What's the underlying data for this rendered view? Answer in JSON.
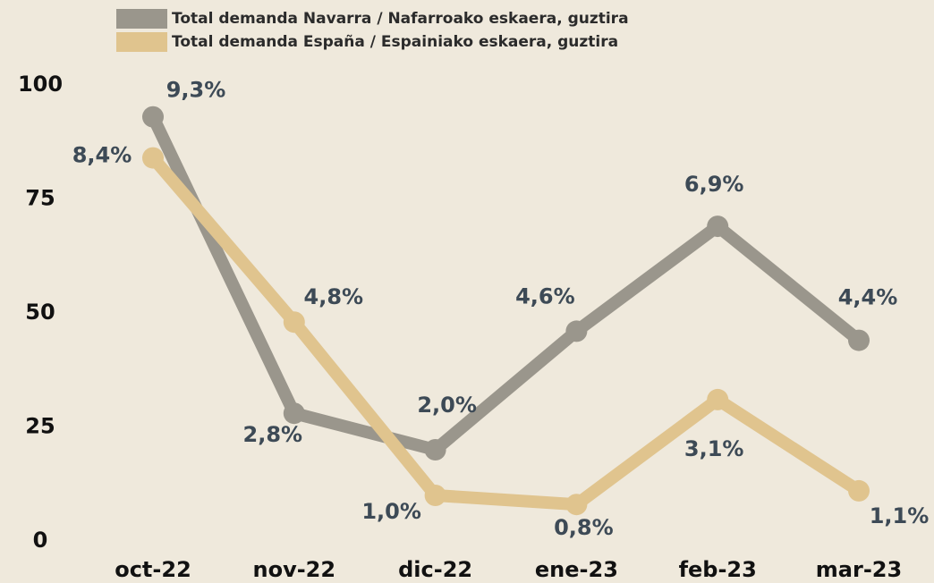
{
  "chart_data": {
    "type": "line",
    "categories": [
      "oct-22",
      "nov-22",
      "dic-22",
      "ene-23",
      "feb-23",
      "mar-23"
    ],
    "series": [
      {
        "name": "Total demanda Navarra / Nafarroako eskaera, guztira",
        "color": "#9a968c",
        "values": [
          93,
          28,
          20,
          46,
          69,
          44
        ],
        "value_labels": [
          "9,3%",
          "2,8%",
          "2,0%",
          "4,6%",
          "6,9%",
          "4,4%"
        ]
      },
      {
        "name": "Total demanda España / Espainiako eskaera, guztira",
        "color": "#e0c48e",
        "values": [
          84,
          48,
          10,
          8,
          31,
          11
        ],
        "value_labels": [
          "8,4%",
          "4,8%",
          "1,0%",
          "0,8%",
          "3,1%",
          "1,1%"
        ]
      }
    ],
    "ylim": [
      0,
      100
    ],
    "yticks": [
      0,
      25,
      50,
      75,
      100
    ],
    "grid": false
  }
}
